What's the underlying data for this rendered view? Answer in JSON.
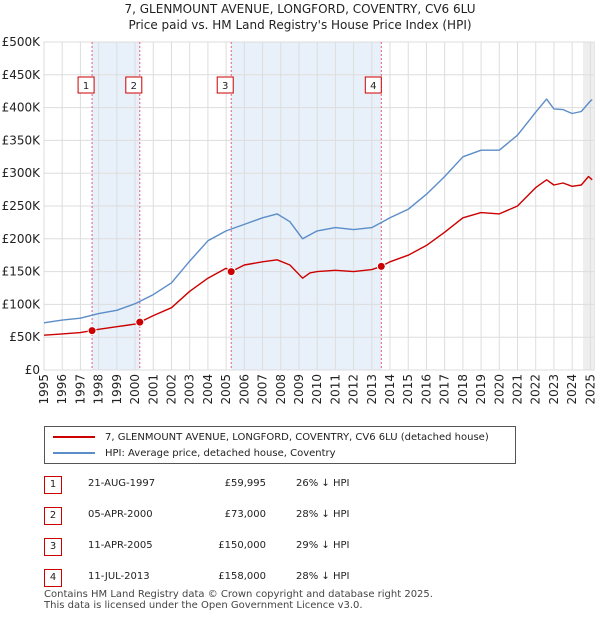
{
  "chart_data": {
    "type": "line",
    "title": "7, GLENMOUNT AVENUE, LONGFORD, COVENTRY, CV6 6LU",
    "subtitle": "Price paid vs. HM Land Registry's House Price Index (HPI)",
    "xlabel": "",
    "ylabel": "",
    "xlim": [
      1995,
      2025.2
    ],
    "ylim": [
      0,
      500000
    ],
    "y_ticks": [
      0,
      50000,
      100000,
      150000,
      200000,
      250000,
      300000,
      350000,
      400000,
      450000,
      500000
    ],
    "y_tick_labels": [
      "£0",
      "£50K",
      "£100K",
      "£150K",
      "£200K",
      "£250K",
      "£300K",
      "£350K",
      "£400K",
      "£450K",
      "£500K"
    ],
    "x_ticks": [
      1995,
      1996,
      1997,
      1998,
      1999,
      2000,
      2001,
      2002,
      2003,
      2004,
      2005,
      2006,
      2007,
      2008,
      2009,
      2010,
      2011,
      2012,
      2013,
      2014,
      2015,
      2016,
      2017,
      2018,
      2019,
      2020,
      2021,
      2022,
      2023,
      2024,
      2025
    ],
    "grid": true,
    "series": [
      {
        "name": "7, GLENMOUNT AVENUE, LONGFORD, COVENTRY, CV6 6LU (detached house)",
        "color": "#cc0000",
        "x": [
          1995,
          1996,
          1997,
          1997.64,
          1998,
          1999,
          2000,
          2000.26,
          2001,
          2002,
          2003,
          2004,
          2005,
          2005.28,
          2006,
          2007,
          2007.8,
          2008.5,
          2009.2,
          2009.6,
          2010,
          2011,
          2012,
          2013,
          2013.52,
          2014,
          2015,
          2016,
          2017,
          2018,
          2019,
          2020,
          2021,
          2022,
          2022.6,
          2023,
          2023.5,
          2024,
          2024.5,
          2024.9,
          2025.1
        ],
        "y": [
          53000,
          55000,
          57000,
          59995,
          62000,
          66000,
          70000,
          73000,
          83000,
          95000,
          120000,
          140000,
          155000,
          150000,
          160000,
          165000,
          168000,
          160000,
          140000,
          148000,
          150000,
          152000,
          150000,
          153000,
          158000,
          165000,
          175000,
          190000,
          210000,
          232000,
          240000,
          238000,
          250000,
          278000,
          290000,
          282000,
          285000,
          280000,
          282000,
          295000,
          290000
        ]
      },
      {
        "name": "HPI: Average price, detached house, Coventry",
        "color": "#5b8dc8",
        "x": [
          1995,
          1996,
          1997,
          1998,
          1999,
          2000,
          2001,
          2002,
          2003,
          2004,
          2005,
          2006,
          2007,
          2007.8,
          2008.5,
          2009.2,
          2010,
          2011,
          2012,
          2013,
          2014,
          2015,
          2016,
          2017,
          2018,
          2019,
          2020,
          2021,
          2022,
          2022.6,
          2023,
          2023.5,
          2024,
          2024.5,
          2025,
          2025.1
        ],
        "y": [
          72000,
          76000,
          79000,
          86000,
          91000,
          101000,
          115000,
          133000,
          166000,
          197000,
          212000,
          222000,
          232000,
          238000,
          226000,
          200000,
          212000,
          217000,
          214000,
          217000,
          232000,
          245000,
          268000,
          295000,
          325000,
          335000,
          335000,
          358000,
          393000,
          413000,
          398000,
          397000,
          391000,
          394000,
          410000,
          412000
        ]
      }
    ],
    "annotations": [
      {
        "label": "1",
        "x": 1997.64,
        "y": 59995
      },
      {
        "label": "2",
        "x": 2000.26,
        "y": 73000
      },
      {
        "label": "3",
        "x": 2005.28,
        "y": 150000
      },
      {
        "label": "4",
        "x": 2013.52,
        "y": 158000
      }
    ]
  },
  "legend": {
    "red_label": "7, GLENMOUNT AVENUE, LONGFORD, COVENTRY, CV6 6LU (detached house)",
    "blue_label": "HPI: Average price, detached house, Coventry",
    "red_color": "#cc0000",
    "blue_color": "#5b8dc8"
  },
  "sales": [
    {
      "num": "1",
      "date": "21-AUG-1997",
      "price": "£59,995",
      "hpi": "26% ↓ HPI"
    },
    {
      "num": "2",
      "date": "05-APR-2000",
      "price": "£73,000",
      "hpi": "28% ↓ HPI"
    },
    {
      "num": "3",
      "date": "11-APR-2005",
      "price": "£150,000",
      "hpi": "29% ↓ HPI"
    },
    {
      "num": "4",
      "date": "11-JUL-2013",
      "price": "£158,000",
      "hpi": "28% ↓ HPI"
    }
  ],
  "footer": {
    "line1": "Contains HM Land Registry data © Crown copyright and database right 2025.",
    "line2": "This data is licensed under the Open Government Licence v3.0."
  }
}
